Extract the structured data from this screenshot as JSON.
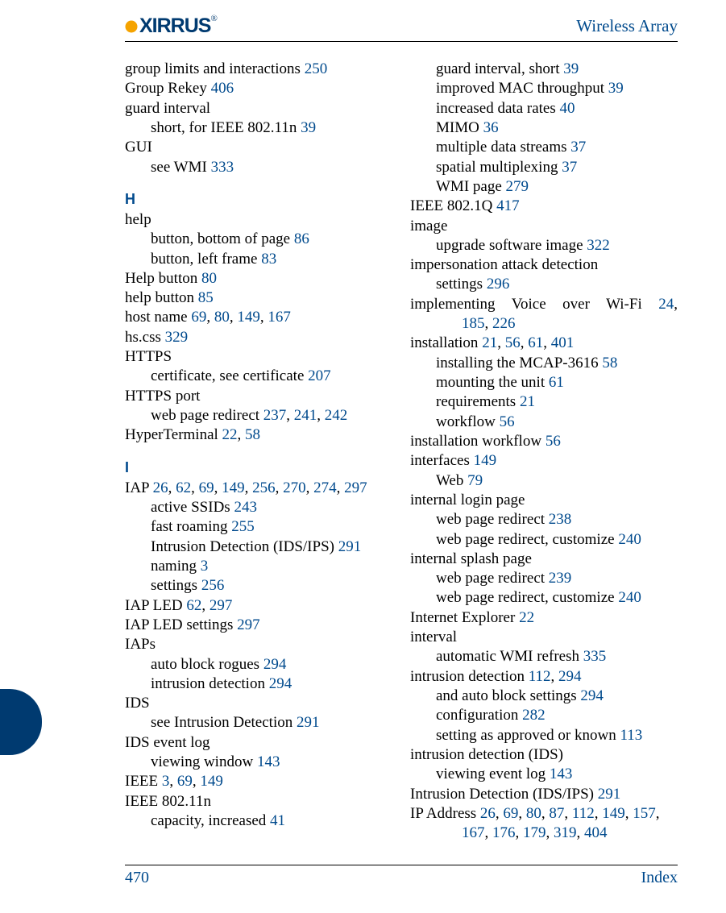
{
  "brand": {
    "name": "XIRRUS",
    "reg": "®",
    "logo_color": "#003a70",
    "dot_color": "#f5a300"
  },
  "header": {
    "title": "Wireless Array",
    "title_color": "#004a8d"
  },
  "footer": {
    "page_number": "470",
    "section": "Index",
    "color": "#004a8d"
  },
  "colors": {
    "link": "#004a8d",
    "text": "#000000",
    "tab": "#003a70"
  },
  "left": [
    {
      "t": "entry",
      "parts": [
        {
          "s": "group limits and interactions "
        },
        {
          "p": "250"
        }
      ]
    },
    {
      "t": "entry",
      "parts": [
        {
          "s": "Group Rekey "
        },
        {
          "p": "406"
        }
      ]
    },
    {
      "t": "entry",
      "parts": [
        {
          "s": "guard interval"
        }
      ]
    },
    {
      "t": "sub",
      "parts": [
        {
          "s": "short, for IEEE 802.11n "
        },
        {
          "p": "39"
        }
      ]
    },
    {
      "t": "entry",
      "parts": [
        {
          "s": "GUI"
        }
      ]
    },
    {
      "t": "sub",
      "parts": [
        {
          "s": "see WMI "
        },
        {
          "p": "333"
        }
      ]
    },
    {
      "t": "letter",
      "parts": [
        {
          "s": "H"
        }
      ]
    },
    {
      "t": "entry",
      "parts": [
        {
          "s": "help"
        }
      ]
    },
    {
      "t": "sub",
      "parts": [
        {
          "s": "button, bottom of page "
        },
        {
          "p": "86"
        }
      ]
    },
    {
      "t": "sub",
      "parts": [
        {
          "s": "button, left frame "
        },
        {
          "p": "83"
        }
      ]
    },
    {
      "t": "entry",
      "parts": [
        {
          "s": "Help button "
        },
        {
          "p": "80"
        }
      ]
    },
    {
      "t": "entry",
      "parts": [
        {
          "s": "help button "
        },
        {
          "p": "85"
        }
      ]
    },
    {
      "t": "entry",
      "parts": [
        {
          "s": "host name "
        },
        {
          "p": "69"
        },
        {
          "s": ", "
        },
        {
          "p": "80"
        },
        {
          "s": ", "
        },
        {
          "p": "149"
        },
        {
          "s": ", "
        },
        {
          "p": "167"
        }
      ]
    },
    {
      "t": "entry",
      "parts": [
        {
          "s": "hs.css "
        },
        {
          "p": "329"
        }
      ]
    },
    {
      "t": "entry",
      "parts": [
        {
          "s": "HTTPS"
        }
      ]
    },
    {
      "t": "sub",
      "parts": [
        {
          "s": "certificate, see certificate "
        },
        {
          "p": "207"
        }
      ]
    },
    {
      "t": "entry",
      "parts": [
        {
          "s": "HTTPS port"
        }
      ]
    },
    {
      "t": "sub",
      "parts": [
        {
          "s": "web page redirect "
        },
        {
          "p": "237"
        },
        {
          "s": ", "
        },
        {
          "p": "241"
        },
        {
          "s": ", "
        },
        {
          "p": "242"
        }
      ]
    },
    {
      "t": "entry",
      "parts": [
        {
          "s": "HyperTerminal "
        },
        {
          "p": "22"
        },
        {
          "s": ", "
        },
        {
          "p": "58"
        }
      ]
    },
    {
      "t": "letter",
      "parts": [
        {
          "s": "I"
        }
      ]
    },
    {
      "t": "entry",
      "parts": [
        {
          "s": "IAP "
        },
        {
          "p": "26"
        },
        {
          "s": ", "
        },
        {
          "p": "62"
        },
        {
          "s": ", "
        },
        {
          "p": "69"
        },
        {
          "s": ", "
        },
        {
          "p": "149"
        },
        {
          "s": ", "
        },
        {
          "p": "256"
        },
        {
          "s": ", "
        },
        {
          "p": "270"
        },
        {
          "s": ", "
        },
        {
          "p": "274"
        },
        {
          "s": ", "
        },
        {
          "p": "297"
        }
      ]
    },
    {
      "t": "sub",
      "parts": [
        {
          "s": "active SSIDs "
        },
        {
          "p": "243"
        }
      ]
    },
    {
      "t": "sub",
      "parts": [
        {
          "s": "fast roaming "
        },
        {
          "p": "255"
        }
      ]
    },
    {
      "t": "sub",
      "parts": [
        {
          "s": "Intrusion Detection (IDS/IPS) "
        },
        {
          "p": "291"
        }
      ]
    },
    {
      "t": "sub",
      "parts": [
        {
          "s": "naming "
        },
        {
          "p": "3"
        }
      ]
    },
    {
      "t": "sub",
      "parts": [
        {
          "s": "settings "
        },
        {
          "p": "256"
        }
      ]
    },
    {
      "t": "entry",
      "parts": [
        {
          "s": "IAP LED "
        },
        {
          "p": "62"
        },
        {
          "s": ", "
        },
        {
          "p": "297"
        }
      ]
    },
    {
      "t": "entry",
      "parts": [
        {
          "s": "IAP LED settings "
        },
        {
          "p": "297"
        }
      ]
    },
    {
      "t": "entry",
      "parts": [
        {
          "s": "IAPs"
        }
      ]
    },
    {
      "t": "sub",
      "parts": [
        {
          "s": "auto block rogues "
        },
        {
          "p": "294"
        }
      ]
    },
    {
      "t": "sub",
      "parts": [
        {
          "s": "intrusion detection "
        },
        {
          "p": "294"
        }
      ]
    },
    {
      "t": "entry",
      "parts": [
        {
          "s": "IDS"
        }
      ]
    },
    {
      "t": "sub",
      "parts": [
        {
          "s": "see Intrusion Detection "
        },
        {
          "p": "291"
        }
      ]
    },
    {
      "t": "entry",
      "parts": [
        {
          "s": "IDS event log"
        }
      ]
    },
    {
      "t": "sub",
      "parts": [
        {
          "s": "viewing window "
        },
        {
          "p": "143"
        }
      ]
    },
    {
      "t": "entry",
      "parts": [
        {
          "s": "IEEE "
        },
        {
          "p": "3"
        },
        {
          "s": ", "
        },
        {
          "p": "69"
        },
        {
          "s": ", "
        },
        {
          "p": "149"
        }
      ]
    },
    {
      "t": "entry",
      "parts": [
        {
          "s": "IEEE 802.11n"
        }
      ]
    },
    {
      "t": "sub",
      "parts": [
        {
          "s": "capacity, increased "
        },
        {
          "p": "41"
        }
      ]
    }
  ],
  "right": [
    {
      "t": "sub",
      "parts": [
        {
          "s": "guard interval, short "
        },
        {
          "p": "39"
        }
      ]
    },
    {
      "t": "sub",
      "parts": [
        {
          "s": "improved MAC throughput "
        },
        {
          "p": "39"
        }
      ]
    },
    {
      "t": "sub",
      "parts": [
        {
          "s": "increased data rates "
        },
        {
          "p": "40"
        }
      ]
    },
    {
      "t": "sub",
      "parts": [
        {
          "s": "MIMO "
        },
        {
          "p": "36"
        }
      ]
    },
    {
      "t": "sub",
      "parts": [
        {
          "s": "multiple data streams "
        },
        {
          "p": "37"
        }
      ]
    },
    {
      "t": "sub",
      "parts": [
        {
          "s": "spatial multiplexing "
        },
        {
          "p": "37"
        }
      ]
    },
    {
      "t": "sub",
      "parts": [
        {
          "s": "WMI page "
        },
        {
          "p": "279"
        }
      ]
    },
    {
      "t": "entry",
      "parts": [
        {
          "s": "IEEE 802.1Q "
        },
        {
          "p": "417"
        }
      ]
    },
    {
      "t": "entry",
      "parts": [
        {
          "s": "image"
        }
      ]
    },
    {
      "t": "sub",
      "parts": [
        {
          "s": "upgrade software image "
        },
        {
          "p": "322"
        }
      ]
    },
    {
      "t": "entry",
      "parts": [
        {
          "s": "impersonation attack detection"
        }
      ]
    },
    {
      "t": "sub",
      "parts": [
        {
          "s": "settings "
        },
        {
          "p": "296"
        }
      ]
    },
    {
      "t": "entry",
      "justify": true,
      "parts": [
        {
          "s": "implementing Voice over Wi-Fi "
        },
        {
          "p": "24"
        },
        {
          "s": ","
        }
      ]
    },
    {
      "t": "subsub",
      "parts": [
        {
          "p": "185"
        },
        {
          "s": ", "
        },
        {
          "p": "226"
        }
      ]
    },
    {
      "t": "entry",
      "parts": [
        {
          "s": "installation "
        },
        {
          "p": "21"
        },
        {
          "s": ", "
        },
        {
          "p": "56"
        },
        {
          "s": ", "
        },
        {
          "p": "61"
        },
        {
          "s": ", "
        },
        {
          "p": "401"
        }
      ]
    },
    {
      "t": "sub",
      "parts": [
        {
          "s": "installing the MCAP-3616 "
        },
        {
          "p": "58"
        }
      ]
    },
    {
      "t": "sub",
      "parts": [
        {
          "s": "mounting the unit "
        },
        {
          "p": "61"
        }
      ]
    },
    {
      "t": "sub",
      "parts": [
        {
          "s": "requirements "
        },
        {
          "p": "21"
        }
      ]
    },
    {
      "t": "sub",
      "parts": [
        {
          "s": "workflow "
        },
        {
          "p": "56"
        }
      ]
    },
    {
      "t": "entry",
      "parts": [
        {
          "s": "installation workflow "
        },
        {
          "p": "56"
        }
      ]
    },
    {
      "t": "entry",
      "parts": [
        {
          "s": "interfaces "
        },
        {
          "p": "149"
        }
      ]
    },
    {
      "t": "sub",
      "parts": [
        {
          "s": "Web "
        },
        {
          "p": "79"
        }
      ]
    },
    {
      "t": "entry",
      "parts": [
        {
          "s": "internal login page"
        }
      ]
    },
    {
      "t": "sub",
      "parts": [
        {
          "s": "web page redirect "
        },
        {
          "p": "238"
        }
      ]
    },
    {
      "t": "sub",
      "parts": [
        {
          "s": "web page redirect, customize "
        },
        {
          "p": "240"
        }
      ]
    },
    {
      "t": "entry",
      "parts": [
        {
          "s": "internal splash page"
        }
      ]
    },
    {
      "t": "sub",
      "parts": [
        {
          "s": "web page redirect "
        },
        {
          "p": "239"
        }
      ]
    },
    {
      "t": "sub",
      "parts": [
        {
          "s": "web page redirect, customize "
        },
        {
          "p": "240"
        }
      ]
    },
    {
      "t": "entry",
      "parts": [
        {
          "s": "Internet Explorer "
        },
        {
          "p": "22"
        }
      ]
    },
    {
      "t": "entry",
      "parts": [
        {
          "s": "interval"
        }
      ]
    },
    {
      "t": "sub",
      "parts": [
        {
          "s": "automatic WMI refresh "
        },
        {
          "p": "335"
        }
      ]
    },
    {
      "t": "entry",
      "parts": [
        {
          "s": "intrusion detection "
        },
        {
          "p": "112"
        },
        {
          "s": ", "
        },
        {
          "p": "294"
        }
      ]
    },
    {
      "t": "sub",
      "parts": [
        {
          "s": "and auto block settings "
        },
        {
          "p": "294"
        }
      ]
    },
    {
      "t": "sub",
      "parts": [
        {
          "s": "configuration "
        },
        {
          "p": "282"
        }
      ]
    },
    {
      "t": "sub",
      "parts": [
        {
          "s": "setting as approved or known "
        },
        {
          "p": "113"
        }
      ]
    },
    {
      "t": "entry",
      "parts": [
        {
          "s": "intrusion detection (IDS)"
        }
      ]
    },
    {
      "t": "sub",
      "parts": [
        {
          "s": "viewing event log "
        },
        {
          "p": "143"
        }
      ]
    },
    {
      "t": "entry",
      "parts": [
        {
          "s": "Intrusion Detection (IDS/IPS) "
        },
        {
          "p": "291"
        }
      ]
    },
    {
      "t": "entry",
      "parts": [
        {
          "s": "IP Address "
        },
        {
          "p": "26"
        },
        {
          "s": ", "
        },
        {
          "p": "69"
        },
        {
          "s": ", "
        },
        {
          "p": "80"
        },
        {
          "s": ", "
        },
        {
          "p": "87"
        },
        {
          "s": ", "
        },
        {
          "p": "112"
        },
        {
          "s": ", "
        },
        {
          "p": "149"
        },
        {
          "s": ", "
        },
        {
          "p": "157"
        },
        {
          "s": ","
        }
      ]
    },
    {
      "t": "subsub",
      "parts": [
        {
          "p": "167"
        },
        {
          "s": ", "
        },
        {
          "p": "176"
        },
        {
          "s": ", "
        },
        {
          "p": "179"
        },
        {
          "s": ", "
        },
        {
          "p": "319"
        },
        {
          "s": ", "
        },
        {
          "p": "404"
        }
      ]
    }
  ]
}
